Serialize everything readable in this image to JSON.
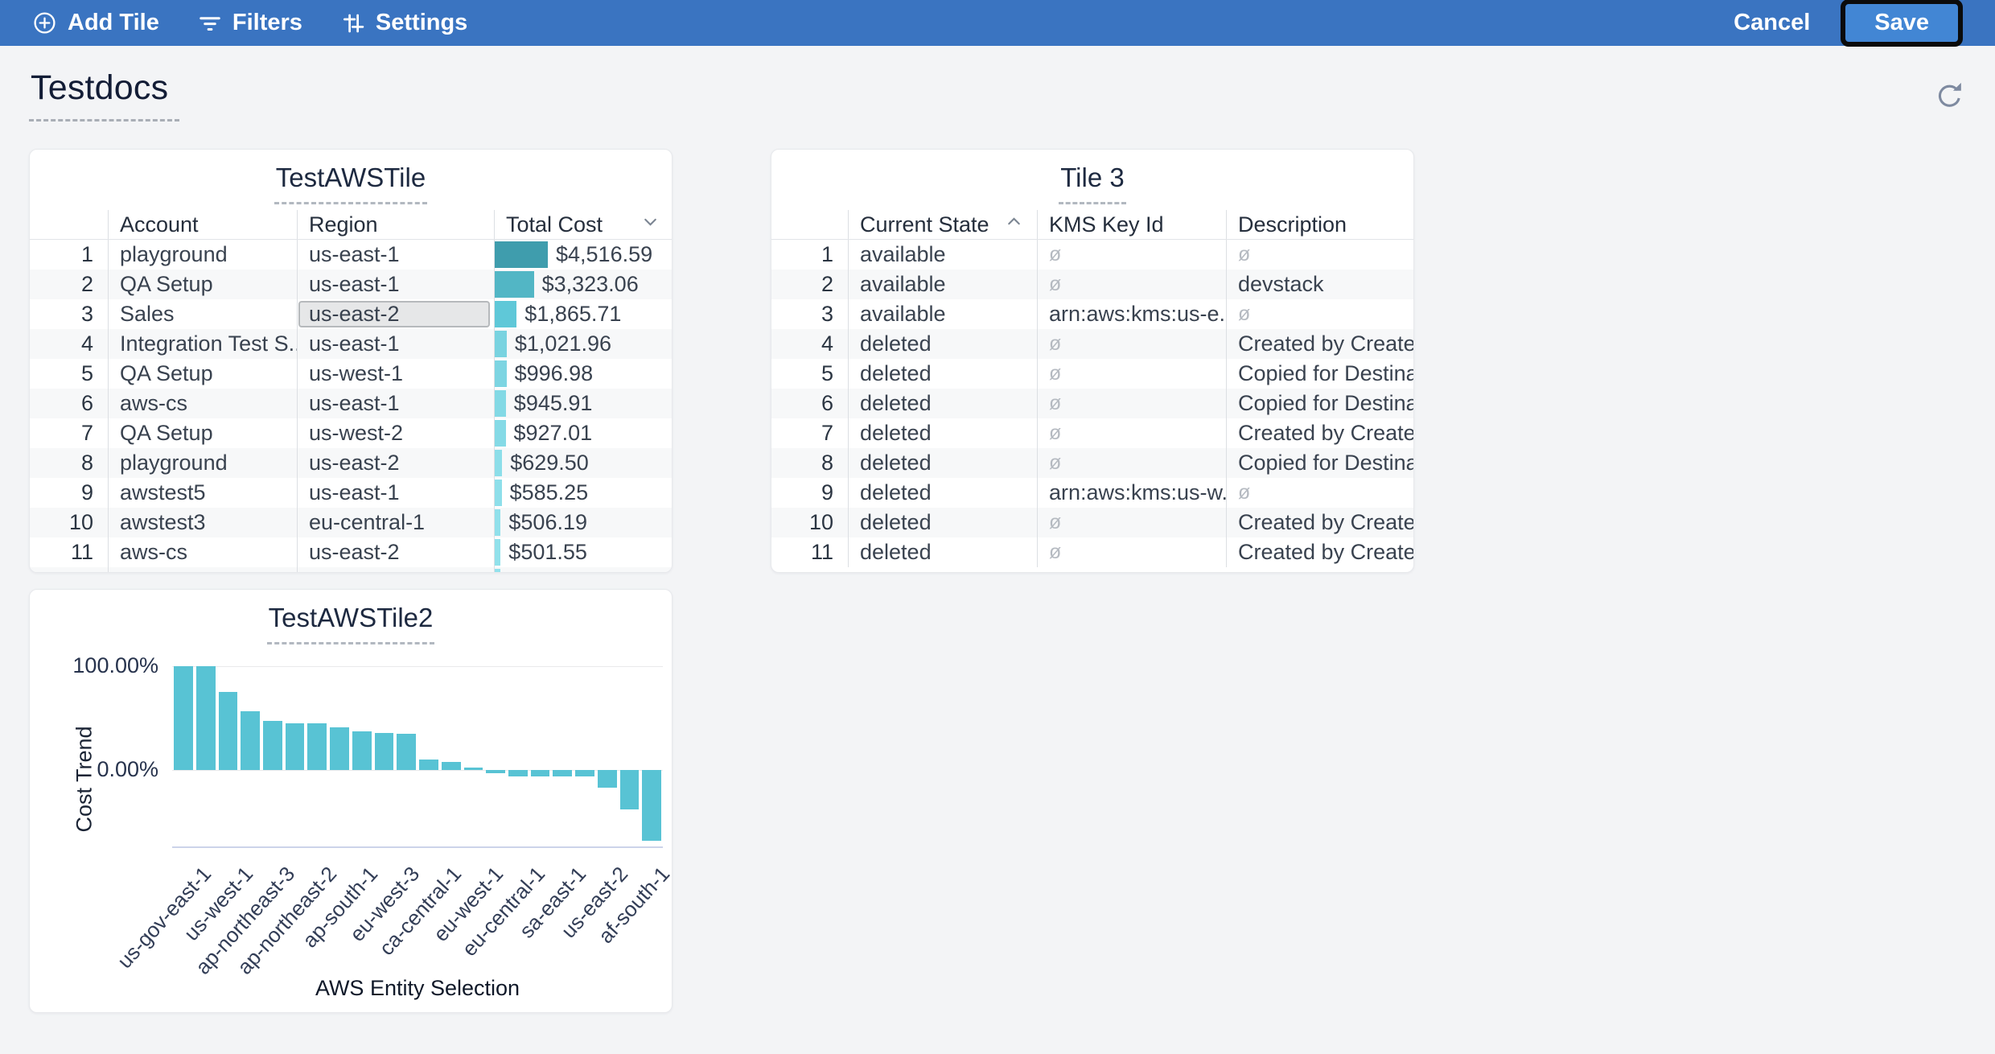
{
  "topbar": {
    "add_tile": "Add Tile",
    "filters": "Filters",
    "settings": "Settings",
    "cancel": "Cancel",
    "save": "Save",
    "bar_color": "#3a74c1",
    "save_button_color": "#4286d4"
  },
  "page": {
    "title": "Testdocs"
  },
  "tiles": {
    "aws_table": {
      "title": "TestAWSTile",
      "columns": [
        "Account",
        "Region",
        "Total Cost"
      ],
      "sort": {
        "column": "Total Cost",
        "direction": "desc"
      },
      "selected_cell": {
        "row_num": 3,
        "column": "region"
      },
      "max_value": 4516.59,
      "has_partial_next_row": true,
      "rows": [
        {
          "num": 1,
          "account": "playground",
          "region": "us-east-1",
          "total_cost": "$4,516.59",
          "value": 4516.59,
          "bar_color": "#3f9dad"
        },
        {
          "num": 2,
          "account": "QA Setup",
          "region": "us-east-1",
          "total_cost": "$3,323.06",
          "value": 3323.06,
          "bar_color": "#52b6c5"
        },
        {
          "num": 3,
          "account": "Sales",
          "region": "us-east-2",
          "total_cost": "$1,865.71",
          "value": 1865.71,
          "bar_color": "#5fc8d8"
        },
        {
          "num": 4,
          "account": "Integration Test S...",
          "region": "us-east-1",
          "total_cost": "$1,021.96",
          "value": 1021.96,
          "bar_color": "#79d3e0"
        },
        {
          "num": 5,
          "account": "QA Setup",
          "region": "us-west-1",
          "total_cost": "$996.98",
          "value": 996.98,
          "bar_color": "#7dd5e2"
        },
        {
          "num": 6,
          "account": "aws-cs",
          "region": "us-east-1",
          "total_cost": "$945.91",
          "value": 945.91,
          "bar_color": "#83d9e5"
        },
        {
          "num": 7,
          "account": "QA Setup",
          "region": "us-west-2",
          "total_cost": "$927.01",
          "value": 927.01,
          "bar_color": "#85dae6"
        },
        {
          "num": 8,
          "account": "playground",
          "region": "us-east-2",
          "total_cost": "$629.50",
          "value": 629.5,
          "bar_color": "#8cdee9"
        },
        {
          "num": 9,
          "account": "awstest5",
          "region": "us-east-1",
          "total_cost": "$585.25",
          "value": 585.25,
          "bar_color": "#8edfea"
        },
        {
          "num": 10,
          "account": "awstest3",
          "region": "eu-central-1",
          "total_cost": "$506.19",
          "value": 506.19,
          "bar_color": "#90e0eb"
        },
        {
          "num": 11,
          "account": "aws-cs",
          "region": "us-east-2",
          "total_cost": "$501.55",
          "value": 501.55,
          "bar_color": "#91e1eb"
        }
      ]
    },
    "tile3": {
      "title": "Tile 3",
      "columns": [
        "Current State",
        "KMS Key Id",
        "Description"
      ],
      "sort": {
        "column": "Current State",
        "direction": "asc"
      },
      "null_symbol": "ø",
      "rows": [
        {
          "num": 1,
          "current_state": "available",
          "kms_key_id": null,
          "description": null
        },
        {
          "num": 2,
          "current_state": "available",
          "kms_key_id": null,
          "description": "devstack"
        },
        {
          "num": 3,
          "current_state": "available",
          "kms_key_id": "arn:aws:kms:us-e...",
          "description": null
        },
        {
          "num": 4,
          "current_state": "deleted",
          "kms_key_id": null,
          "description": "Created by Create..."
        },
        {
          "num": 5,
          "current_state": "deleted",
          "kms_key_id": null,
          "description": "Copied for Destina..."
        },
        {
          "num": 6,
          "current_state": "deleted",
          "kms_key_id": null,
          "description": "Copied for Destina..."
        },
        {
          "num": 7,
          "current_state": "deleted",
          "kms_key_id": null,
          "description": "Created by Create..."
        },
        {
          "num": 8,
          "current_state": "deleted",
          "kms_key_id": null,
          "description": "Copied for Destina..."
        },
        {
          "num": 9,
          "current_state": "deleted",
          "kms_key_id": "arn:aws:kms:us-w...",
          "description": null
        },
        {
          "num": 10,
          "current_state": "deleted",
          "kms_key_id": null,
          "description": "Created by Create..."
        },
        {
          "num": 11,
          "current_state": "deleted",
          "kms_key_id": null,
          "description": "Created by Create..."
        }
      ]
    }
  },
  "chart_data": {
    "type": "bar",
    "title": "TestAWSTile2",
    "xlabel": "AWS Entity Selection",
    "ylabel": "Cost Trend",
    "y_tick_labels": [
      "100.00%",
      "0.00%"
    ],
    "ylim": [
      -75,
      110
    ],
    "grid": true,
    "bar_color": "#58c3d4",
    "x_tick_labels": [
      "us-gov-east-1",
      "us-west-1",
      "ap-northeast-3",
      "ap-northeast-2",
      "ap-south-1",
      "eu-west-3",
      "ca-central-1",
      "eu-west-1",
      "eu-central-1",
      "sa-east-1",
      "us-east-2",
      "af-south-1"
    ],
    "x_tick_note": "labels shown for every other bar",
    "values_pct": [
      100,
      100,
      75,
      57,
      47,
      45,
      45,
      41,
      37,
      36,
      35,
      10,
      8,
      2,
      -3,
      -6,
      -6,
      -6,
      -6,
      -17,
      -38,
      -68
    ]
  }
}
